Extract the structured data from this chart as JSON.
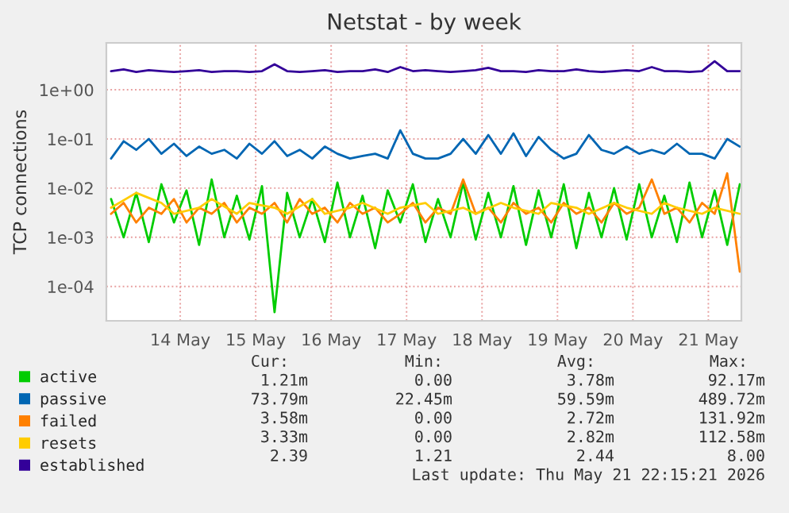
{
  "chart_data": {
    "type": "line",
    "title": "Netstat - by week",
    "ylabel": "TCP connections",
    "log": "y",
    "grid": true,
    "legend": "bottom",
    "x": [
      "2026-05-13T02:00",
      "2026-05-13T06:00",
      "2026-05-13T10:00",
      "2026-05-13T14:00",
      "2026-05-13T18:00",
      "2026-05-13T22:00",
      "2026-05-14T02:00",
      "2026-05-14T06:00",
      "2026-05-14T10:00",
      "2026-05-14T14:00",
      "2026-05-14T18:00",
      "2026-05-14T22:00",
      "2026-05-15T02:00",
      "2026-05-15T06:00",
      "2026-05-15T10:00",
      "2026-05-15T14:00",
      "2026-05-15T18:00",
      "2026-05-15T22:00",
      "2026-05-16T02:00",
      "2026-05-16T06:00",
      "2026-05-16T10:00",
      "2026-05-16T14:00",
      "2026-05-16T18:00",
      "2026-05-16T22:00",
      "2026-05-17T02:00",
      "2026-05-17T06:00",
      "2026-05-17T10:00",
      "2026-05-17T14:00",
      "2026-05-17T18:00",
      "2026-05-17T22:00",
      "2026-05-18T02:00",
      "2026-05-18T06:00",
      "2026-05-18T10:00",
      "2026-05-18T14:00",
      "2026-05-18T18:00",
      "2026-05-18T22:00",
      "2026-05-19T02:00",
      "2026-05-19T06:00",
      "2026-05-19T10:00",
      "2026-05-19T14:00",
      "2026-05-19T18:00",
      "2026-05-19T22:00",
      "2026-05-20T02:00",
      "2026-05-20T06:00",
      "2026-05-20T10:00",
      "2026-05-20T14:00",
      "2026-05-20T18:00",
      "2026-05-20T22:00",
      "2026-05-21T02:00",
      "2026-05-21T06:00",
      "2026-05-21T10:00"
    ],
    "series": [
      {
        "name": "active",
        "color": "#00cc00",
        "values": [
          0.006,
          0.001,
          0.008,
          0.0008,
          0.012,
          0.002,
          0.009,
          0.0007,
          0.015,
          0.001,
          0.007,
          0.0009,
          0.011,
          3e-05,
          0.008,
          0.001,
          0.006,
          0.0008,
          0.013,
          0.001,
          0.007,
          0.0006,
          0.009,
          0.002,
          0.012,
          0.0008,
          0.006,
          0.001,
          0.013,
          0.0009,
          0.008,
          0.001,
          0.011,
          0.0007,
          0.009,
          0.001,
          0.012,
          0.0006,
          0.008,
          0.001,
          0.01,
          0.0009,
          0.012,
          0.001,
          0.007,
          0.0008,
          0.013,
          0.001,
          0.009,
          0.0007,
          0.012
        ]
      },
      {
        "name": "passive",
        "color": "#0066b3",
        "values": [
          0.04,
          0.09,
          0.06,
          0.1,
          0.05,
          0.08,
          0.045,
          0.07,
          0.05,
          0.06,
          0.04,
          0.08,
          0.05,
          0.09,
          0.045,
          0.06,
          0.04,
          0.07,
          0.05,
          0.04,
          0.045,
          0.05,
          0.04,
          0.15,
          0.05,
          0.04,
          0.04,
          0.05,
          0.1,
          0.05,
          0.12,
          0.05,
          0.13,
          0.045,
          0.11,
          0.06,
          0.04,
          0.05,
          0.12,
          0.06,
          0.05,
          0.07,
          0.05,
          0.06,
          0.05,
          0.08,
          0.05,
          0.05,
          0.04,
          0.1,
          0.07
        ]
      },
      {
        "name": "failed",
        "color": "#ff8000",
        "values": [
          0.003,
          0.005,
          0.002,
          0.004,
          0.003,
          0.006,
          0.002,
          0.004,
          0.003,
          0.005,
          0.002,
          0.004,
          0.003,
          0.005,
          0.002,
          0.006,
          0.003,
          0.004,
          0.002,
          0.005,
          0.003,
          0.004,
          0.002,
          0.003,
          0.005,
          0.002,
          0.004,
          0.003,
          0.015,
          0.003,
          0.004,
          0.002,
          0.005,
          0.003,
          0.004,
          0.002,
          0.005,
          0.003,
          0.004,
          0.002,
          0.005,
          0.003,
          0.004,
          0.015,
          0.003,
          0.004,
          0.002,
          0.005,
          0.003,
          0.02,
          0.0002
        ]
      },
      {
        "name": "resets",
        "color": "#ffcc00",
        "values": [
          0.004,
          null,
          0.008,
          null,
          0.005,
          0.003,
          null,
          0.004,
          0.006,
          null,
          0.003,
          0.005,
          null,
          0.004,
          0.003,
          null,
          0.006,
          0.003,
          null,
          0.004,
          0.005,
          null,
          0.003,
          0.004,
          null,
          0.005,
          0.003,
          null,
          0.004,
          0.003,
          null,
          0.005,
          0.004,
          null,
          0.003,
          0.005,
          null,
          0.004,
          0.003,
          null,
          0.005,
          0.004,
          null,
          0.003,
          0.005,
          0.004,
          null,
          0.003,
          0.004,
          null,
          0.003
        ]
      },
      {
        "name": "established",
        "color": "#330099",
        "values": [
          2.4,
          2.6,
          2.3,
          2.5,
          2.4,
          2.3,
          2.4,
          2.5,
          2.3,
          2.4,
          2.4,
          2.3,
          2.4,
          3.3,
          2.4,
          2.3,
          2.4,
          2.5,
          2.3,
          2.4,
          2.4,
          2.6,
          2.3,
          2.9,
          2.4,
          2.5,
          2.4,
          2.3,
          2.4,
          2.5,
          2.8,
          2.4,
          2.4,
          2.3,
          2.5,
          2.4,
          2.4,
          2.6,
          2.4,
          2.3,
          2.4,
          2.5,
          2.4,
          2.9,
          2.4,
          2.4,
          2.3,
          2.4,
          3.8,
          2.4,
          2.4
        ]
      }
    ],
    "xlim": [
      "2026-05-13T00:30",
      "2026-05-21T10:30"
    ],
    "xticks": [
      {
        "value": "2026-05-14",
        "label": "14 May"
      },
      {
        "value": "2026-05-15",
        "label": "15 May"
      },
      {
        "value": "2026-05-16",
        "label": "16 May"
      },
      {
        "value": "2026-05-17",
        "label": "17 May"
      },
      {
        "value": "2026-05-18",
        "label": "18 May"
      },
      {
        "value": "2026-05-19",
        "label": "19 May"
      },
      {
        "value": "2026-05-20",
        "label": "20 May"
      },
      {
        "value": "2026-05-21",
        "label": "21 May"
      }
    ],
    "ylim": [
      2e-05,
      9
    ],
    "yticks": [
      {
        "value": 0.0001,
        "label": "1e-04"
      },
      {
        "value": 0.001,
        "label": "1e-03"
      },
      {
        "value": 0.01,
        "label": "1e-02"
      },
      {
        "value": 0.1,
        "label": "1e-01"
      },
      {
        "value": 1,
        "label": "1e+00"
      }
    ],
    "annotations": [
      "Cur:",
      "Min:",
      "Avg:",
      "Max:",
      "1.21m",
      "0.00",
      "3.78m",
      "92.17m",
      "73.79m",
      "22.45m",
      "59.59m",
      "489.72m",
      "3.58m",
      "0.00",
      "2.72m",
      "131.92m",
      "3.33m",
      "0.00",
      "2.82m",
      "112.58m",
      "2.39",
      "1.21",
      "2.44",
      "8.00",
      "Last update: Thu May 21 22:15:21 2026"
    ]
  }
}
